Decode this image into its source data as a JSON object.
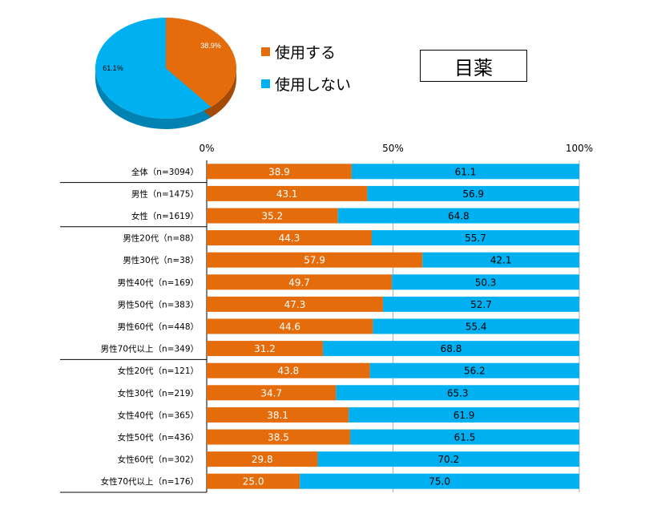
{
  "colors": {
    "use": "#E46C0A",
    "nouse": "#00B0F0",
    "pie_use_side": "#A34A05",
    "pie_nouse_side": "#0083B3"
  },
  "title": "目薬",
  "legend": [
    {
      "label": "使用する",
      "color": "#E46C0A"
    },
    {
      "label": "使用しない",
      "color": "#00B0F0"
    }
  ],
  "chart_data": [
    {
      "type": "pie",
      "labels": [
        "使用する",
        "使用しない"
      ],
      "values": [
        38.9,
        61.1
      ],
      "data_labels": [
        "38.9%",
        "61.1%"
      ]
    },
    {
      "type": "bar",
      "orientation": "horizontal",
      "stacked": true,
      "xlim": [
        0,
        100
      ],
      "xticks": [
        "0%",
        "50%",
        "100%"
      ],
      "grid": true,
      "categories": [
        "全体（n=3094）",
        "男性（n=1475）",
        "女性（n=1619）",
        "男性20代（n=88）",
        "男性30代（n=38）",
        "男性40代（n=169）",
        "男性50代（n=383）",
        "男性60代（n=448）",
        "男性70代以上（n=349）",
        "女性20代（n=121）",
        "女性30代（n=219）",
        "女性40代（n=365）",
        "女性50代（n=436）",
        "女性60代（n=302）",
        "女性70代以上（n=176）"
      ],
      "series": [
        {
          "name": "使用する",
          "values": [
            38.9,
            43.1,
            35.2,
            44.3,
            57.9,
            49.7,
            47.3,
            44.6,
            31.2,
            43.8,
            34.7,
            38.1,
            38.5,
            29.8,
            25.0
          ]
        },
        {
          "name": "使用しない",
          "values": [
            61.1,
            56.9,
            64.8,
            55.7,
            42.1,
            50.3,
            52.7,
            55.4,
            68.8,
            56.2,
            65.3,
            61.9,
            61.5,
            70.2,
            75.0
          ]
        }
      ],
      "group_dividers_after": [
        0,
        2,
        8
      ]
    }
  ]
}
